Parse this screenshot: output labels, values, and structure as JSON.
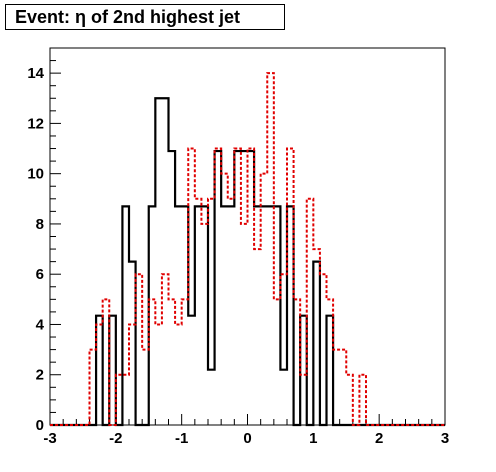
{
  "title": "Event: η of 2nd highest jet",
  "chart_data": {
    "type": "histogram-step",
    "title": "Event: η of 2nd highest jet",
    "xlabel": "",
    "ylabel": "",
    "xlim": [
      -3,
      3
    ],
    "ylim": [
      0,
      15
    ],
    "x_ticks": [
      -3,
      -2,
      -1,
      0,
      1,
      2,
      3
    ],
    "y_ticks": [
      0,
      2,
      4,
      6,
      8,
      10,
      12,
      14
    ],
    "grid": false,
    "legend": "none",
    "bin_edges": [
      -3.0,
      -2.9,
      -2.8,
      -2.7,
      -2.6,
      -2.5,
      -2.4,
      -2.3,
      -2.2,
      -2.1,
      -2.0,
      -1.9,
      -1.8,
      -1.7,
      -1.6,
      -1.5,
      -1.4,
      -1.3,
      -1.2,
      -1.1,
      -1.0,
      -0.9,
      -0.8,
      -0.7,
      -0.6,
      -0.5,
      -0.4,
      -0.3,
      -0.2,
      -0.1,
      0.0,
      0.1,
      0.2,
      0.3,
      0.4,
      0.5,
      0.6,
      0.7,
      0.8,
      0.9,
      1.0,
      1.1,
      1.2,
      1.3,
      1.4,
      1.5,
      1.6,
      1.7,
      1.8,
      1.9,
      2.0,
      2.1,
      2.2,
      2.3,
      2.4,
      2.5,
      2.6,
      2.7,
      2.8,
      2.9,
      3.0
    ],
    "series": [
      {
        "color": "#000000",
        "style": "solid",
        "values": [
          0,
          0,
          0,
          0,
          0,
          0,
          0,
          4.35,
          0,
          4.35,
          0,
          8.7,
          6.5,
          0,
          0,
          8.7,
          13.0,
          13.0,
          10.9,
          8.7,
          8.7,
          4.35,
          8.7,
          8.7,
          2.2,
          10.9,
          8.7,
          8.7,
          10.9,
          10.9,
          10.9,
          8.7,
          8.7,
          8.7,
          8.7,
          2.2,
          8.7,
          0,
          4.35,
          0,
          6.5,
          0,
          4.35,
          0,
          0,
          0,
          0,
          0,
          0,
          0,
          0,
          0,
          0,
          0,
          0,
          0,
          0,
          0,
          0,
          0
        ]
      },
      {
        "color": "#e00000",
        "style": "dashed",
        "values": [
          0,
          0,
          0,
          0,
          0,
          0,
          3,
          4,
          5,
          0,
          2,
          2,
          4,
          6,
          3,
          5,
          4,
          6,
          5,
          4,
          5,
          11,
          9,
          8,
          9,
          11,
          10,
          9,
          11,
          8,
          11,
          7,
          10,
          14,
          5,
          6,
          11,
          5,
          2,
          9,
          7,
          6,
          5,
          3,
          3,
          2,
          0,
          2,
          0,
          0,
          0,
          0,
          0,
          0,
          0,
          0,
          0,
          0,
          0,
          0
        ]
      }
    ]
  }
}
